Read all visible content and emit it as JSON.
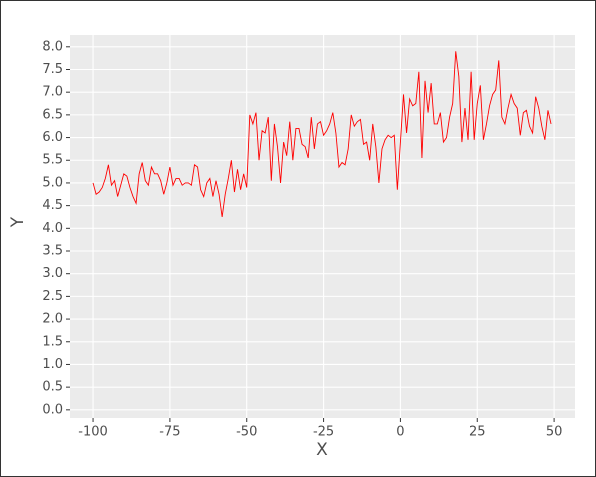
{
  "chart_data": {
    "type": "line",
    "x_label": "X",
    "y_label": "Y",
    "x": [
      -100,
      -99,
      -98,
      -97,
      -96,
      -95,
      -94,
      -93,
      -92,
      -91,
      -90,
      -89,
      -88,
      -87,
      -86,
      -85,
      -84,
      -83,
      -82,
      -81,
      -80,
      -79,
      -78,
      -77,
      -76,
      -75,
      -74,
      -73,
      -72,
      -71,
      -70,
      -69,
      -68,
      -67,
      -66,
      -65,
      -64,
      -63,
      -62,
      -61,
      -60,
      -59,
      -58,
      -57,
      -56,
      -55,
      -54,
      -53,
      -52,
      -51,
      -50,
      -49,
      -48,
      -47,
      -46,
      -45,
      -44,
      -43,
      -42,
      -41,
      -40,
      -39,
      -38,
      -37,
      -36,
      -35,
      -34,
      -33,
      -32,
      -31,
      -30,
      -29,
      -28,
      -27,
      -26,
      -25,
      -24,
      -23,
      -22,
      -21,
      -20,
      -19,
      -18,
      -17,
      -16,
      -15,
      -14,
      -13,
      -12,
      -11,
      -10,
      -9,
      -8,
      -7,
      -6,
      -5,
      -4,
      -3,
      -2,
      -1,
      0,
      1,
      2,
      3,
      4,
      5,
      6,
      7,
      8,
      9,
      10,
      11,
      12,
      13,
      14,
      15,
      16,
      17,
      18,
      19,
      20,
      21,
      22,
      23,
      24,
      25,
      26,
      27,
      28,
      29,
      30,
      31,
      32,
      33,
      34,
      35,
      36,
      37,
      38,
      39,
      40,
      41,
      42,
      43,
      44,
      45,
      46,
      47,
      48,
      49
    ],
    "series": [
      {
        "color": "#ff0000",
        "values": [
          5.0,
          4.75,
          4.8,
          4.9,
          5.1,
          5.4,
          4.95,
          5.05,
          4.7,
          4.95,
          5.2,
          5.15,
          4.9,
          4.7,
          4.55,
          5.2,
          5.45,
          5.05,
          4.95,
          5.35,
          5.2,
          5.2,
          5.05,
          4.75,
          5.0,
          5.35,
          4.95,
          5.1,
          5.1,
          4.95,
          5.0,
          5.0,
          4.95,
          5.4,
          5.35,
          4.85,
          4.7,
          5.0,
          5.1,
          4.7,
          5.05,
          4.75,
          4.25,
          4.75,
          5.1,
          5.5,
          4.8,
          5.3,
          4.85,
          5.2,
          4.9,
          6.5,
          6.3,
          6.55,
          5.5,
          6.15,
          6.1,
          6.45,
          5.05,
          6.3,
          5.8,
          5.0,
          5.9,
          5.6,
          6.35,
          5.5,
          6.2,
          6.2,
          5.85,
          5.8,
          5.55,
          6.45,
          5.75,
          6.3,
          6.35,
          6.05,
          6.15,
          6.3,
          6.55,
          6.1,
          5.35,
          5.45,
          5.4,
          5.75,
          6.5,
          6.25,
          6.35,
          6.4,
          5.85,
          5.9,
          5.5,
          6.3,
          5.8,
          5.0,
          5.75,
          5.95,
          6.05,
          6.0,
          6.05,
          4.85,
          5.9,
          6.95,
          6.1,
          6.85,
          6.7,
          6.75,
          7.45,
          5.55,
          7.25,
          6.55,
          7.2,
          6.3,
          6.3,
          6.55,
          5.9,
          6.0,
          6.45,
          6.75,
          7.9,
          7.35,
          5.9,
          6.65,
          5.95,
          7.45,
          5.95,
          6.75,
          7.15,
          5.95,
          6.3,
          6.7,
          6.95,
          7.05,
          7.7,
          6.45,
          6.3,
          6.65,
          6.95,
          6.75,
          6.65,
          6.05,
          6.55,
          6.6,
          6.25,
          6.1,
          6.9,
          6.65,
          6.25,
          5.95,
          6.6,
          6.3
        ]
      }
    ],
    "xlim": [
      -107.5,
      56.8
    ],
    "ylim": [
      -0.18,
      8.26
    ],
    "xticks": [
      -100,
      -75,
      -50,
      -25,
      0,
      25,
      50
    ],
    "yticks": [
      {
        "value": 0,
        "label": "0.0"
      },
      {
        "value": 0.5,
        "label": "0.5"
      },
      {
        "value": 1,
        "label": "1.0"
      },
      {
        "value": 1.5,
        "label": "1.5"
      },
      {
        "value": 2,
        "label": "2.0"
      },
      {
        "value": 2.5,
        "label": "2.5"
      },
      {
        "value": 3,
        "label": "3.0"
      },
      {
        "value": 3.5,
        "label": "3.5"
      },
      {
        "value": 4,
        "label": "4.0"
      },
      {
        "value": 4.5,
        "label": "4.5"
      },
      {
        "value": 5,
        "label": "5.0"
      },
      {
        "value": 5.5,
        "label": "5.5"
      },
      {
        "value": 6,
        "label": "6.0"
      },
      {
        "value": 6.5,
        "label": "6.5"
      },
      {
        "value": 7,
        "label": "7.0"
      },
      {
        "value": 7.5,
        "label": "7.5"
      },
      {
        "value": 8,
        "label": "8.0"
      }
    ],
    "grid": true
  }
}
